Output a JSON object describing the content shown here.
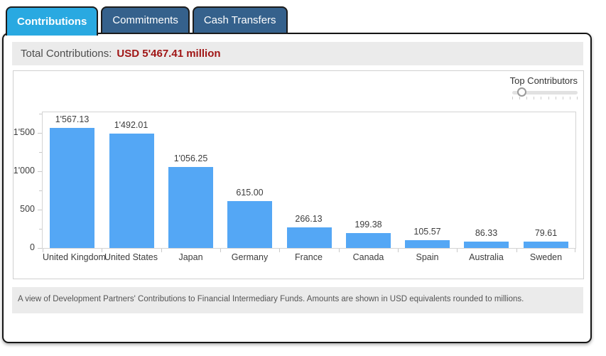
{
  "tabs": [
    {
      "label": "Contributions",
      "active": true
    },
    {
      "label": "Commitments",
      "active": false
    },
    {
      "label": "Cash Transfers",
      "active": false
    }
  ],
  "summary": {
    "label": "Total Contributions:",
    "value": "USD 5'467.41 million"
  },
  "slider": {
    "label": "Top Contributors",
    "position_pct": 8,
    "tick_count": 10
  },
  "chart_data": {
    "type": "bar",
    "title": "",
    "xlabel": "",
    "ylabel": "",
    "categories": [
      "United Kingdom",
      "United States",
      "Japan",
      "Germany",
      "France",
      "Canada",
      "Spain",
      "Australia",
      "Sweden"
    ],
    "values": [
      1567.13,
      1492.01,
      1056.25,
      615.0,
      266.13,
      199.38,
      105.57,
      86.33,
      79.61
    ],
    "value_labels": [
      "1'567.13",
      "1'492.01",
      "1'056.25",
      "615.00",
      "266.13",
      "199.38",
      "105.57",
      "86.33",
      "79.61"
    ],
    "ylim": [
      0,
      1773
    ],
    "yticks": [
      1500,
      1000,
      500,
      0
    ],
    "ytick_labels": [
      "1'500",
      "1'000",
      "500",
      "0"
    ],
    "minor_yticks": [
      1750,
      1250,
      750,
      250
    ],
    "grid": false,
    "legend": false
  },
  "footer": {
    "note": "A view of Development Partners' Contributions to Financial Intermediary Funds. Amounts are shown in USD equivalents rounded to millions."
  },
  "colors": {
    "active_tab": "#29a9e1",
    "inactive_tab": "#35618c",
    "accent_red": "#a01616",
    "bar": "#54a7f5",
    "band_gray": "#ebebeb"
  }
}
